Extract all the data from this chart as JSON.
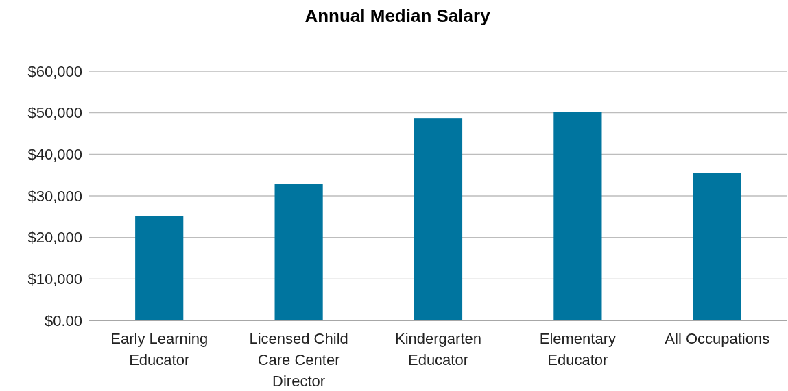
{
  "chart_data": {
    "type": "bar",
    "title": "Annual Median Salary",
    "categories": [
      "Early Learning Educator",
      "Licensed Child Care Center Director",
      "Kindergarten Educator",
      "Elementary Educator",
      "All Occupations"
    ],
    "values": [
      25200,
      32800,
      48600,
      50200,
      35600
    ],
    "color": "#00759f",
    "ylim": [
      0,
      60000
    ],
    "yticks": [
      {
        "value": 0,
        "label": "$0.00"
      },
      {
        "value": 10000,
        "label": "$10,000"
      },
      {
        "value": 20000,
        "label": "$20,000"
      },
      {
        "value": 30000,
        "label": "$30,000"
      },
      {
        "value": 40000,
        "label": "$40,000"
      },
      {
        "value": 50000,
        "label": "$50,000"
      },
      {
        "value": 60000,
        "label": "$60,000"
      }
    ],
    "grid": "y"
  }
}
